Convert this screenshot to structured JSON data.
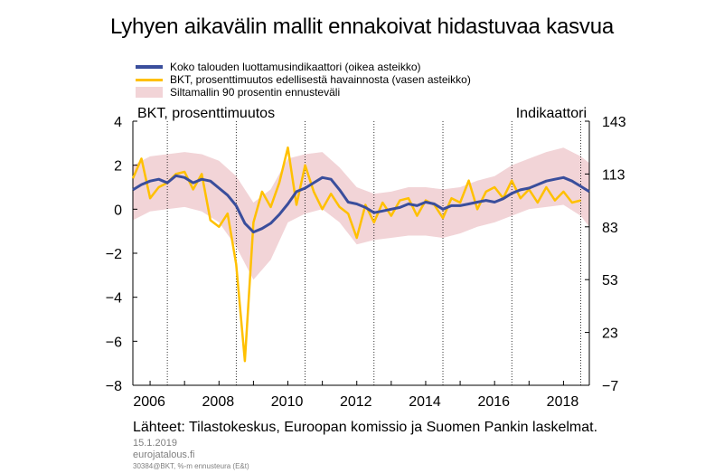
{
  "title": "Lyhyen aikavälin mallit ennakoivat hidastuvaa kasvua",
  "legend": {
    "indicator": "Koko talouden luottamusindikaattori  (oikea asteikko)",
    "gdp": "BKT, prosenttimuutos  edellisestä havainnosta (vasen asteikko)",
    "band": "Siltamallin  90 prosentin ennusteväli"
  },
  "axis_labels": {
    "left": "BKT, prosenttimuutos",
    "right": "Indikaattori"
  },
  "source": "Lähteet: Tilastokeskus,  Euroopan komissio ja Suomen Pankin laskelmat.",
  "footer": {
    "date": "15.1.2019",
    "site": "eurojatalous.fi",
    "code": "30384@BKT, %-m ennusteura (E&t)"
  },
  "colors": {
    "indicator": "#3a4e9c",
    "gdp": "#ffc000",
    "band": "#f2d4d7"
  },
  "chart_data": {
    "type": "line",
    "x_ticks": [
      "2006",
      "2008",
      "2010",
      "2012",
      "2014",
      "2016",
      "2018"
    ],
    "y_left": {
      "range": [
        -8,
        4
      ],
      "ticks": [
        "4",
        "2",
        "0",
        "−2",
        "−4",
        "−6",
        "−8"
      ]
    },
    "y_right": {
      "range": [
        -7,
        143
      ],
      "ticks": [
        "143",
        "113",
        "83",
        "53",
        "23",
        "−7"
      ]
    },
    "grid": "vertical",
    "x_range": [
      2005.5,
      2018.75
    ],
    "series": [
      {
        "name": "Koko talouden luottamusindikaattori  (oikea asteikko)",
        "axis": "right",
        "x": [
          2005.5,
          2005.75,
          2006.0,
          2006.25,
          2006.5,
          2006.75,
          2007.0,
          2007.25,
          2007.5,
          2007.75,
          2008.0,
          2008.25,
          2008.5,
          2008.75,
          2009.0,
          2009.25,
          2009.5,
          2009.75,
          2010.0,
          2010.25,
          2010.5,
          2010.75,
          2011.0,
          2011.25,
          2011.5,
          2011.75,
          2012.0,
          2012.25,
          2012.5,
          2012.75,
          2013.0,
          2013.25,
          2013.5,
          2013.75,
          2014.0,
          2014.25,
          2014.5,
          2014.75,
          2015.0,
          2015.25,
          2015.5,
          2015.75,
          2016.0,
          2016.25,
          2016.5,
          2016.75,
          2017.0,
          2017.25,
          2017.5,
          2017.75,
          2018.0,
          2018.25,
          2018.5,
          2018.75
        ],
        "y": [
          104,
          107,
          109,
          110,
          108,
          112,
          111,
          108,
          110,
          109,
          105,
          101,
          95,
          85,
          80,
          82,
          85,
          90,
          96,
          103,
          105,
          108,
          111,
          110,
          104,
          97,
          96,
          94,
          91,
          92,
          93,
          94,
          96,
          95,
          97,
          96,
          93,
          95,
          95,
          96,
          97,
          98,
          97,
          99,
          102,
          104,
          105,
          107,
          109,
          110,
          111,
          109,
          106,
          103
        ]
      },
      {
        "name": "BKT, prosenttimuutos  edellisestä havainnosta (vasen asteikko)",
        "axis": "left",
        "x": [
          2005.5,
          2005.75,
          2006.0,
          2006.25,
          2006.5,
          2006.75,
          2007.0,
          2007.25,
          2007.5,
          2007.75,
          2008.0,
          2008.25,
          2008.5,
          2008.75,
          2009.0,
          2009.25,
          2009.5,
          2009.75,
          2010.0,
          2010.25,
          2010.5,
          2010.75,
          2011.0,
          2011.25,
          2011.5,
          2011.75,
          2012.0,
          2012.25,
          2012.5,
          2012.75,
          2013.0,
          2013.25,
          2013.5,
          2013.75,
          2014.0,
          2014.25,
          2014.5,
          2014.75,
          2015.0,
          2015.25,
          2015.5,
          2015.75,
          2016.0,
          2016.25,
          2016.5,
          2016.75,
          2017.0,
          2017.25,
          2017.5,
          2017.75,
          2018.0,
          2018.25,
          2018.5
        ],
        "y": [
          1.4,
          2.3,
          0.5,
          1.0,
          1.2,
          1.6,
          1.7,
          0.9,
          1.6,
          -0.5,
          -0.8,
          -0.2,
          -2.5,
          -6.9,
          -0.6,
          0.8,
          0.1,
          1.2,
          2.8,
          0.2,
          2.0,
          0.8,
          0.0,
          0.7,
          0.1,
          -0.2,
          -1.3,
          0.2,
          -0.6,
          0.3,
          -0.3,
          0.4,
          0.5,
          -0.3,
          0.4,
          0.2,
          -0.4,
          0.5,
          0.3,
          1.3,
          0.0,
          0.8,
          1.0,
          0.5,
          1.3,
          0.5,
          0.9,
          0.3,
          1.0,
          0.4,
          0.8,
          0.3,
          0.4
        ]
      }
    ],
    "band": {
      "name": "Siltamallin  90 prosentin ennusteväli",
      "axis": "left",
      "x": [
        2005.5,
        2006.0,
        2006.5,
        2007.0,
        2007.5,
        2008.0,
        2008.5,
        2009.0,
        2009.5,
        2010.0,
        2010.5,
        2011.0,
        2011.5,
        2012.0,
        2012.5,
        2013.0,
        2013.5,
        2014.0,
        2014.5,
        2015.0,
        2015.5,
        2016.0,
        2016.5,
        2017.0,
        2017.5,
        2018.0,
        2018.5,
        2018.75
      ],
      "upper": [
        2.0,
        2.4,
        2.5,
        2.6,
        2.5,
        2.2,
        1.5,
        0.3,
        0.9,
        2.3,
        2.5,
        2.6,
        1.9,
        1.0,
        0.7,
        0.8,
        1.0,
        1.0,
        0.9,
        1.0,
        1.3,
        1.5,
        2.0,
        2.3,
        2.6,
        2.8,
        2.4,
        2.1
      ],
      "lower": [
        -0.5,
        -0.1,
        0.0,
        0.1,
        -0.1,
        -0.6,
        -1.7,
        -3.2,
        -2.3,
        -0.6,
        -0.2,
        0.0,
        -0.6,
        -1.6,
        -1.4,
        -1.3,
        -1.2,
        -1.2,
        -1.3,
        -1.1,
        -0.8,
        -0.6,
        -0.3,
        0.0,
        0.1,
        0.2,
        -0.3,
        -0.8
      ]
    }
  }
}
